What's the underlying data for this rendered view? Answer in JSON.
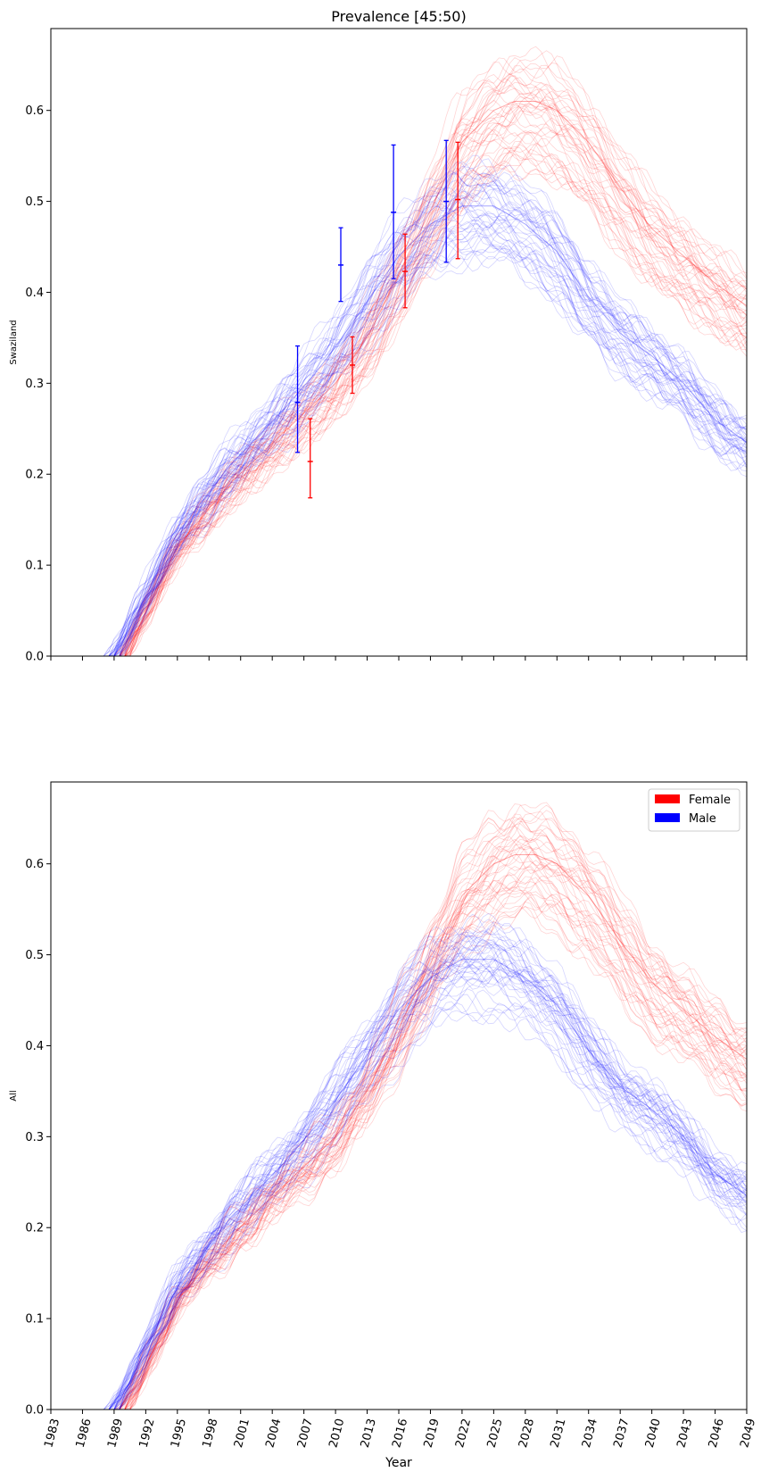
{
  "chart_data": [
    {
      "type": "line",
      "title": "Prevalence [45:50)",
      "ylabel": "Swaziland",
      "xlabel": "",
      "xlim": [
        1983,
        2049
      ],
      "ylim": [
        0,
        0.69
      ],
      "yticks": [
        0.0,
        0.1,
        0.2,
        0.3,
        0.4,
        0.5,
        0.6
      ],
      "ytick_labels": [
        "0.0",
        "0.1",
        "0.2",
        "0.3",
        "0.4",
        "0.5",
        "0.6"
      ],
      "series": [
        {
          "name": "Female",
          "color": "#ff0000",
          "x": [
            1983,
            1989,
            1990,
            1995,
            2000,
            2005,
            2010,
            2013,
            2016,
            2019,
            2022,
            2025,
            2027,
            2029,
            2031,
            2034,
            2037,
            2040,
            2043,
            2046,
            2049
          ],
          "y": [
            0.0,
            0.0,
            0.0,
            0.12,
            0.19,
            0.245,
            0.3,
            0.35,
            0.42,
            0.49,
            0.565,
            0.6,
            0.61,
            0.61,
            0.6,
            0.565,
            0.515,
            0.47,
            0.44,
            0.41,
            0.385
          ]
        },
        {
          "name": "Male",
          "color": "#0000ff",
          "x": [
            1983,
            1989,
            1990,
            1995,
            2000,
            2005,
            2008,
            2010,
            2013,
            2016,
            2019,
            2022,
            2025,
            2028,
            2031,
            2034,
            2037,
            2040,
            2043,
            2046,
            2049
          ],
          "y": [
            0.0,
            0.0,
            0.02,
            0.135,
            0.21,
            0.27,
            0.31,
            0.34,
            0.39,
            0.44,
            0.475,
            0.495,
            0.495,
            0.475,
            0.445,
            0.395,
            0.355,
            0.33,
            0.3,
            0.26,
            0.235
          ]
        }
      ],
      "error_bars": [
        {
          "name": "Male",
          "color": "#0000ff",
          "x": 2006.4,
          "y": 0.279,
          "low": 0.224,
          "high": 0.341
        },
        {
          "name": "Female",
          "color": "#ff0000",
          "x": 2007.6,
          "y": 0.214,
          "low": 0.174,
          "high": 0.261
        },
        {
          "name": "Male",
          "color": "#0000ff",
          "x": 2010.5,
          "y": 0.43,
          "low": 0.39,
          "high": 0.471
        },
        {
          "name": "Female",
          "color": "#ff0000",
          "x": 2011.6,
          "y": 0.32,
          "low": 0.289,
          "high": 0.351
        },
        {
          "name": "Male",
          "color": "#0000ff",
          "x": 2015.5,
          "y": 0.488,
          "low": 0.415,
          "high": 0.562
        },
        {
          "name": "Female",
          "color": "#ff0000",
          "x": 2016.6,
          "y": 0.423,
          "low": 0.383,
          "high": 0.464
        },
        {
          "name": "Male",
          "color": "#0000ff",
          "x": 2020.5,
          "y": 0.5,
          "low": 0.433,
          "high": 0.567
        },
        {
          "name": "Female",
          "color": "#ff0000",
          "x": 2021.6,
          "y": 0.502,
          "low": 0.437,
          "high": 0.565
        }
      ]
    },
    {
      "type": "line",
      "title": "",
      "ylabel": "All",
      "xlabel": "Year",
      "xlim": [
        1983,
        2049
      ],
      "ylim": [
        0,
        0.69
      ],
      "yticks": [
        0.0,
        0.1,
        0.2,
        0.3,
        0.4,
        0.5,
        0.6
      ],
      "ytick_labels": [
        "0.0",
        "0.1",
        "0.2",
        "0.3",
        "0.4",
        "0.5",
        "0.6"
      ],
      "xticks": [
        1983,
        1986,
        1989,
        1992,
        1995,
        1998,
        2001,
        2004,
        2007,
        2010,
        2013,
        2016,
        2019,
        2022,
        2025,
        2028,
        2031,
        2034,
        2037,
        2040,
        2043,
        2046,
        2049
      ],
      "xtick_labels": [
        "1983",
        "1986",
        "1989",
        "1992",
        "1995",
        "1998",
        "2001",
        "2004",
        "2007",
        "2010",
        "2013",
        "2016",
        "2019",
        "2022",
        "2025",
        "2028",
        "2031",
        "2034",
        "2037",
        "2040",
        "2043",
        "2046",
        "2049"
      ],
      "legend": {
        "location": "upper right",
        "entries": [
          {
            "label": "Female",
            "color": "#ff0000"
          },
          {
            "label": "Male",
            "color": "#0000ff"
          }
        ]
      },
      "series": [
        {
          "name": "Female",
          "color": "#ff0000",
          "x": [
            1983,
            1989,
            1990,
            1995,
            2000,
            2005,
            2010,
            2013,
            2016,
            2019,
            2022,
            2025,
            2027,
            2029,
            2031,
            2034,
            2037,
            2040,
            2043,
            2046,
            2049
          ],
          "y": [
            0.0,
            0.0,
            0.0,
            0.12,
            0.19,
            0.245,
            0.3,
            0.35,
            0.42,
            0.49,
            0.565,
            0.6,
            0.61,
            0.61,
            0.6,
            0.565,
            0.515,
            0.47,
            0.44,
            0.41,
            0.385
          ]
        },
        {
          "name": "Male",
          "color": "#0000ff",
          "x": [
            1983,
            1989,
            1990,
            1995,
            2000,
            2005,
            2008,
            2010,
            2013,
            2016,
            2019,
            2022,
            2025,
            2028,
            2031,
            2034,
            2037,
            2040,
            2043,
            2046,
            2049
          ],
          "y": [
            0.0,
            0.0,
            0.02,
            0.135,
            0.21,
            0.27,
            0.31,
            0.34,
            0.39,
            0.44,
            0.475,
            0.495,
            0.495,
            0.475,
            0.445,
            0.395,
            0.355,
            0.33,
            0.3,
            0.26,
            0.235
          ]
        }
      ]
    }
  ]
}
